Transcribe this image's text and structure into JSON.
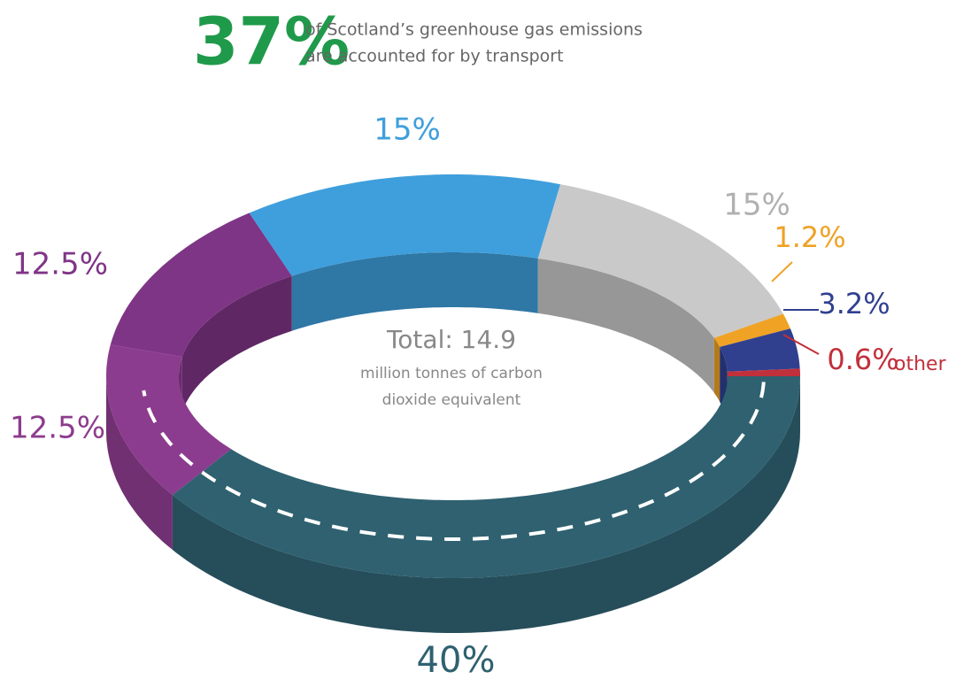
{
  "chart_data": {
    "type": "donut",
    "headline": {
      "figure": "37%",
      "lines": [
        "of Scotland’s greenhouse gas emissions",
        "are accounted for by transport"
      ]
    },
    "total": {
      "lines": [
        "Total: 14.9",
        "million tonnes of carbon",
        "dioxide equivalent"
      ]
    },
    "categories": [
      null,
      null,
      null,
      null,
      null,
      null,
      null,
      "other"
    ],
    "values": [
      40,
      12.5,
      12.5,
      15,
      15,
      1.2,
      3.2,
      0.6
    ],
    "value_labels": [
      "40%",
      "12.5%",
      "12.5%",
      "15%",
      "15%",
      "1.2%",
      "3.2%",
      "0.6%"
    ],
    "colors": [
      "#2f6170",
      "#8c3c8e",
      "#7f3586",
      "#3f9fdc",
      "#c9c9c9",
      "#efa224",
      "#30408f",
      "#c1303b"
    ]
  }
}
